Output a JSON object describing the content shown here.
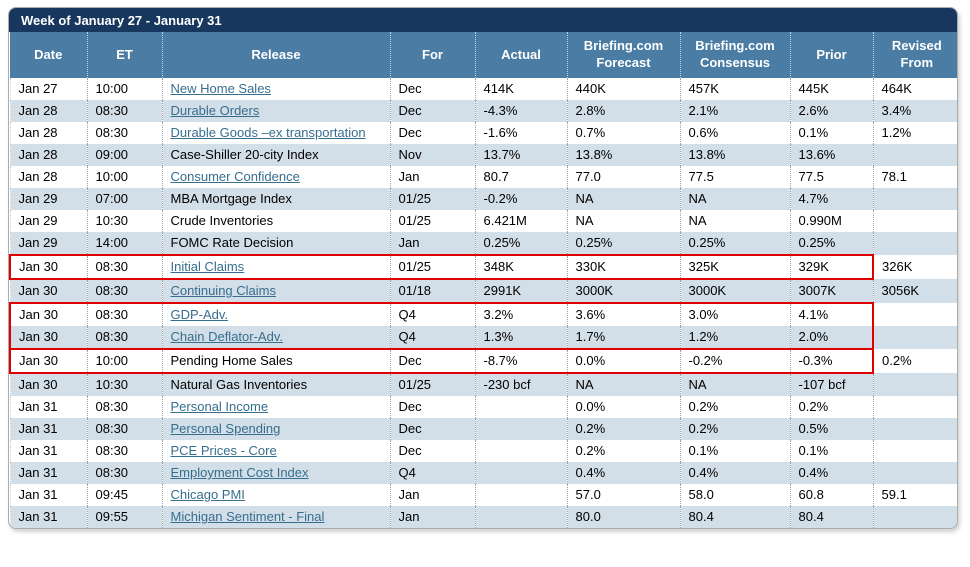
{
  "title": "Week of January 27 - January 31",
  "colors": {
    "title_bar": "#17375E",
    "header_bar": "#4B7CA4",
    "row_alternate": "#D2DEE8",
    "link": "#376E8D",
    "highlight_box": "#E00000"
  },
  "columns": [
    {
      "key": "date",
      "label": "Date"
    },
    {
      "key": "et",
      "label": "ET"
    },
    {
      "key": "release",
      "label": "Release"
    },
    {
      "key": "for",
      "label": "For"
    },
    {
      "key": "actual",
      "label": "Actual"
    },
    {
      "key": "forecast",
      "label": "Briefing.com Forecast"
    },
    {
      "key": "consensus",
      "label": "Briefing.com Consensus"
    },
    {
      "key": "prior",
      "label": "Prior"
    },
    {
      "key": "revised",
      "label": "Revised From"
    }
  ],
  "rows": [
    {
      "date": "Jan 27",
      "et": "10:00",
      "release": "New Home Sales",
      "link": true,
      "for": "Dec",
      "actual": "414K",
      "forecast": "440K",
      "consensus": "457K",
      "prior": "445K",
      "revised": "464K",
      "highlight": null
    },
    {
      "date": "Jan 28",
      "et": "08:30",
      "release": "Durable Orders",
      "link": true,
      "for": "Dec",
      "actual": "-4.3%",
      "forecast": "2.8%",
      "consensus": "2.1%",
      "prior": "2.6%",
      "revised": "3.4%",
      "highlight": null
    },
    {
      "date": "Jan 28",
      "et": "08:30",
      "release": "Durable Goods –ex transportation",
      "link": true,
      "for": "Dec",
      "actual": "-1.6%",
      "forecast": "0.7%",
      "consensus": "0.6%",
      "prior": "0.1%",
      "revised": "1.2%",
      "highlight": null
    },
    {
      "date": "Jan 28",
      "et": "09:00",
      "release": "Case-Shiller 20-city Index",
      "link": false,
      "for": "Nov",
      "actual": "13.7%",
      "forecast": "13.8%",
      "consensus": "13.8%",
      "prior": "13.6%",
      "revised": "",
      "highlight": null
    },
    {
      "date": "Jan 28",
      "et": "10:00",
      "release": "Consumer Confidence",
      "link": true,
      "for": "Jan",
      "actual": "80.7",
      "forecast": "77.0",
      "consensus": "77.5",
      "prior": "77.5",
      "revised": "78.1",
      "highlight": null
    },
    {
      "date": "Jan 29",
      "et": "07:00",
      "release": "MBA Mortgage Index",
      "link": false,
      "for": "01/25",
      "actual": "-0.2%",
      "forecast": "NA",
      "consensus": "NA",
      "prior": "4.7%",
      "revised": "",
      "highlight": null
    },
    {
      "date": "Jan 29",
      "et": "10:30",
      "release": "Crude Inventories",
      "link": false,
      "for": "01/25",
      "actual": "6.421M",
      "forecast": "NA",
      "consensus": "NA",
      "prior": "0.990M",
      "revised": "",
      "highlight": null
    },
    {
      "date": "Jan 29",
      "et": "14:00",
      "release": "FOMC Rate Decision",
      "link": false,
      "for": "Jan",
      "actual": "0.25%",
      "forecast": "0.25%",
      "consensus": "0.25%",
      "prior": "0.25%",
      "revised": "",
      "highlight": null
    },
    {
      "date": "Jan 30",
      "et": "08:30",
      "release": "Initial Claims",
      "link": true,
      "for": "01/25",
      "actual": "348K",
      "forecast": "330K",
      "consensus": "325K",
      "prior": "329K",
      "revised": "326K",
      "highlight": "single"
    },
    {
      "date": "Jan 30",
      "et": "08:30",
      "release": "Continuing Claims",
      "link": true,
      "for": "01/18",
      "actual": "2991K",
      "forecast": "3000K",
      "consensus": "3000K",
      "prior": "3007K",
      "revised": "3056K",
      "highlight": null
    },
    {
      "date": "Jan 30",
      "et": "08:30",
      "release": "GDP-Adv.",
      "link": true,
      "for": "Q4",
      "actual": "3.2%",
      "forecast": "3.6%",
      "consensus": "3.0%",
      "prior": "4.1%",
      "revised": "",
      "highlight": "top"
    },
    {
      "date": "Jan 30",
      "et": "08:30",
      "release": "Chain Deflator-Adv.",
      "link": true,
      "for": "Q4",
      "actual": "1.3%",
      "forecast": "1.7%",
      "consensus": "1.2%",
      "prior": "2.0%",
      "revised": "",
      "highlight": "bottom"
    },
    {
      "date": "Jan 30",
      "et": "10:00",
      "release": "Pending Home Sales",
      "link": false,
      "for": "Dec",
      "actual": "-8.7%",
      "forecast": "0.0%",
      "consensus": "-0.2%",
      "prior": "-0.3%",
      "revised": "0.2%",
      "highlight": "single"
    },
    {
      "date": "Jan 30",
      "et": "10:30",
      "release": "Natural Gas Inventories",
      "link": false,
      "for": "01/25",
      "actual": "-230 bcf",
      "forecast": "NA",
      "consensus": "NA",
      "prior": "-107 bcf",
      "revised": "",
      "highlight": null
    },
    {
      "date": "Jan 31",
      "et": "08:30",
      "release": "Personal Income",
      "link": true,
      "for": "Dec",
      "actual": "",
      "forecast": "0.0%",
      "consensus": "0.2%",
      "prior": "0.2%",
      "revised": "",
      "highlight": null
    },
    {
      "date": "Jan 31",
      "et": "08:30",
      "release": "Personal Spending",
      "link": true,
      "for": "Dec",
      "actual": "",
      "forecast": "0.2%",
      "consensus": "0.2%",
      "prior": "0.5%",
      "revised": "",
      "highlight": null
    },
    {
      "date": "Jan 31",
      "et": "08:30",
      "release": "PCE Prices - Core",
      "link": true,
      "for": "Dec",
      "actual": "",
      "forecast": "0.2%",
      "consensus": "0.1%",
      "prior": "0.1%",
      "revised": "",
      "highlight": null
    },
    {
      "date": "Jan 31",
      "et": "08:30",
      "release": "Employment Cost Index",
      "link": true,
      "for": "Q4",
      "actual": "",
      "forecast": "0.4%",
      "consensus": "0.4%",
      "prior": "0.4%",
      "revised": "",
      "highlight": null
    },
    {
      "date": "Jan 31",
      "et": "09:45",
      "release": "Chicago PMI",
      "link": true,
      "for": "Jan",
      "actual": "",
      "forecast": "57.0",
      "consensus": "58.0",
      "prior": "60.8",
      "revised": "59.1",
      "highlight": null
    },
    {
      "date": "Jan 31",
      "et": "09:55",
      "release": "Michigan Sentiment - Final",
      "link": true,
      "for": "Jan",
      "actual": "",
      "forecast": "80.0",
      "consensus": "80.4",
      "prior": "80.4",
      "revised": "",
      "highlight": null
    }
  ]
}
